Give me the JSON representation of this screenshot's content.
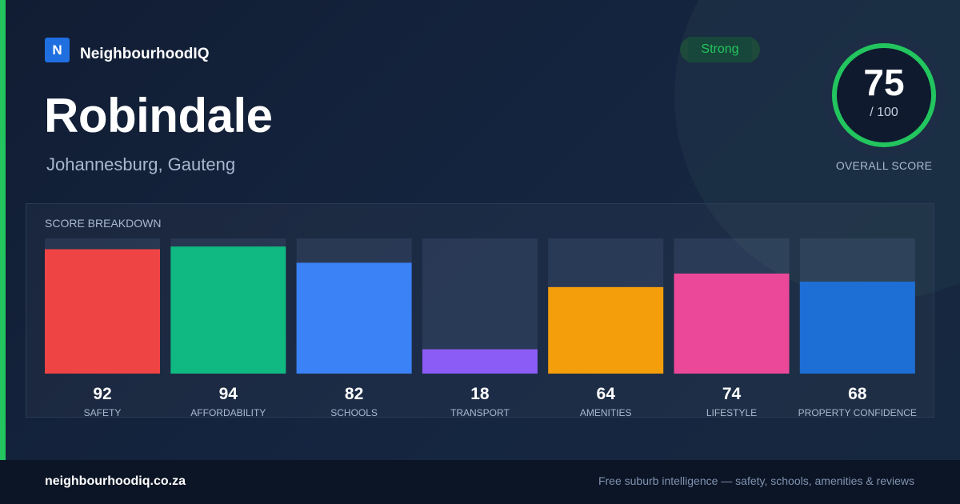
{
  "brand": {
    "logo_letter": "N",
    "name": "NeighbourhoodIQ"
  },
  "suburb": {
    "name": "Robindale",
    "location": "Johannesburg, Gauteng"
  },
  "badge": {
    "label": "Strong",
    "color": "#22c55e"
  },
  "overall": {
    "score": 75,
    "max_label": "/ 100",
    "max": 100,
    "label": "OVERALL SCORE"
  },
  "breakdown": {
    "title": "SCORE BREAKDOWN"
  },
  "chart_data": {
    "type": "bar",
    "title": "SCORE BREAKDOWN",
    "categories": [
      "SAFETY",
      "AFFORDABILITY",
      "SCHOOLS",
      "TRANSPORT",
      "AMENITIES",
      "LIFESTYLE",
      "PROPERTY CONFIDENCE"
    ],
    "values": [
      92,
      94,
      82,
      18,
      64,
      74,
      68
    ],
    "colors": [
      "#ef4444",
      "#10b981",
      "#3b82f6",
      "#8b5cf6",
      "#f59e0b",
      "#ec4899",
      "#1d6fd6"
    ],
    "ylim": [
      0,
      100
    ]
  },
  "footer": {
    "url": "neighbourhoodiq.co.za",
    "tagline": "Free suburb intelligence — safety, schools, amenities & reviews"
  }
}
